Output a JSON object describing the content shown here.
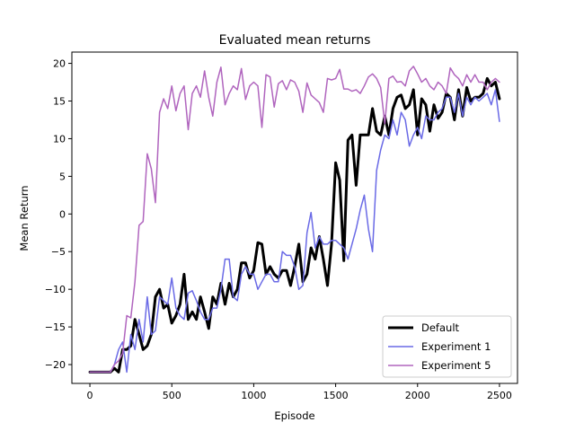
{
  "chart_data": {
    "type": "line",
    "title": "Evaluated mean returns",
    "xlabel": "Episode",
    "ylabel": "Mean Return",
    "xlim": [
      -110,
      2610
    ],
    "ylim": [
      -22.5,
      21.5
    ],
    "xticks": [
      0,
      500,
      1000,
      1500,
      2000,
      2500
    ],
    "yticks": [
      -20,
      -15,
      -10,
      -5,
      0,
      5,
      10,
      15,
      20
    ],
    "grid": false,
    "legend_position": "lower right",
    "series": [
      {
        "name": "Default",
        "color": "#000000",
        "width": 3,
        "points": [
          [
            0,
            -21
          ],
          [
            25,
            -21
          ],
          [
            50,
            -21
          ],
          [
            75,
            -21
          ],
          [
            100,
            -21
          ],
          [
            125,
            -21
          ],
          [
            150,
            -20.5
          ],
          [
            175,
            -21
          ],
          [
            200,
            -18
          ],
          [
            225,
            -18
          ],
          [
            250,
            -17.5
          ],
          [
            275,
            -14
          ],
          [
            300,
            -16
          ],
          [
            325,
            -18
          ],
          [
            350,
            -17.5
          ],
          [
            375,
            -16
          ],
          [
            400,
            -11
          ],
          [
            425,
            -10
          ],
          [
            450,
            -12.5
          ],
          [
            475,
            -12
          ],
          [
            500,
            -14.5
          ],
          [
            525,
            -13.5
          ],
          [
            550,
            -12
          ],
          [
            575,
            -8
          ],
          [
            600,
            -14
          ],
          [
            625,
            -13
          ],
          [
            650,
            -14
          ],
          [
            675,
            -11
          ],
          [
            700,
            -13
          ],
          [
            725,
            -15.2
          ],
          [
            750,
            -11
          ],
          [
            775,
            -12
          ],
          [
            800,
            -9.2
          ],
          [
            825,
            -12
          ],
          [
            850,
            -9.2
          ],
          [
            875,
            -11
          ],
          [
            900,
            -10
          ],
          [
            925,
            -6.5
          ],
          [
            950,
            -6.5
          ],
          [
            975,
            -8.5
          ],
          [
            1000,
            -7.5
          ],
          [
            1025,
            -3.8
          ],
          [
            1050,
            -4
          ],
          [
            1075,
            -8
          ],
          [
            1100,
            -7
          ],
          [
            1125,
            -8
          ],
          [
            1150,
            -8.5
          ],
          [
            1175,
            -7.5
          ],
          [
            1200,
            -7.5
          ],
          [
            1225,
            -9.5
          ],
          [
            1250,
            -7
          ],
          [
            1275,
            -4
          ],
          [
            1300,
            -9
          ],
          [
            1325,
            -8
          ],
          [
            1350,
            -4.5
          ],
          [
            1375,
            -6
          ],
          [
            1400,
            -3
          ],
          [
            1425,
            -6
          ],
          [
            1450,
            -9.5
          ],
          [
            1475,
            -4
          ],
          [
            1500,
            6.8
          ],
          [
            1525,
            4.5
          ],
          [
            1550,
            -6.2
          ],
          [
            1575,
            9.8
          ],
          [
            1600,
            10.5
          ],
          [
            1625,
            3.8
          ],
          [
            1650,
            10.5
          ],
          [
            1675,
            10.5
          ],
          [
            1700,
            10.5
          ],
          [
            1725,
            14
          ],
          [
            1750,
            11
          ],
          [
            1775,
            10.5
          ],
          [
            1800,
            13
          ],
          [
            1825,
            10.5
          ],
          [
            1850,
            14
          ],
          [
            1875,
            15.5
          ],
          [
            1900,
            15.8
          ],
          [
            1925,
            14
          ],
          [
            1950,
            14.5
          ],
          [
            1975,
            16.5
          ],
          [
            2000,
            10.5
          ],
          [
            2025,
            15.3
          ],
          [
            2050,
            14.5
          ],
          [
            2075,
            11
          ],
          [
            2100,
            14.5
          ],
          [
            2125,
            12.7
          ],
          [
            2150,
            13.5
          ],
          [
            2175,
            16
          ],
          [
            2200,
            15.5
          ],
          [
            2225,
            12.5
          ],
          [
            2250,
            16.5
          ],
          [
            2275,
            13
          ],
          [
            2300,
            16.8
          ],
          [
            2325,
            15
          ],
          [
            2350,
            15.5
          ],
          [
            2375,
            15.5
          ],
          [
            2400,
            16
          ],
          [
            2425,
            18
          ],
          [
            2450,
            17
          ],
          [
            2475,
            17.5
          ],
          [
            2500,
            15.3
          ]
        ]
      },
      {
        "name": "Experiment 1",
        "color": "#6a6ae6",
        "width": 1.5,
        "points": [
          [
            0,
            -21
          ],
          [
            25,
            -21
          ],
          [
            50,
            -21
          ],
          [
            75,
            -21
          ],
          [
            100,
            -21
          ],
          [
            125,
            -21
          ],
          [
            150,
            -20
          ],
          [
            175,
            -18
          ],
          [
            200,
            -17
          ],
          [
            225,
            -21
          ],
          [
            250,
            -16
          ],
          [
            275,
            -18
          ],
          [
            300,
            -14
          ],
          [
            325,
            -17
          ],
          [
            350,
            -11
          ],
          [
            375,
            -16
          ],
          [
            400,
            -15.5
          ],
          [
            425,
            -11
          ],
          [
            450,
            -11.5
          ],
          [
            475,
            -12
          ],
          [
            500,
            -8.5
          ],
          [
            525,
            -12.5
          ],
          [
            550,
            -13.5
          ],
          [
            575,
            -14
          ],
          [
            600,
            -10.5
          ],
          [
            625,
            -10.2
          ],
          [
            650,
            -11.5
          ],
          [
            675,
            -13
          ],
          [
            700,
            -14
          ],
          [
            725,
            -14
          ],
          [
            750,
            -12.5
          ],
          [
            775,
            -12.5
          ],
          [
            800,
            -10
          ],
          [
            825,
            -6
          ],
          [
            850,
            -6
          ],
          [
            875,
            -11
          ],
          [
            900,
            -11.5
          ],
          [
            925,
            -8
          ],
          [
            950,
            -7
          ],
          [
            975,
            -8
          ],
          [
            1000,
            -8
          ],
          [
            1025,
            -10
          ],
          [
            1050,
            -9
          ],
          [
            1075,
            -8
          ],
          [
            1100,
            -8
          ],
          [
            1125,
            -9
          ],
          [
            1150,
            -9
          ],
          [
            1175,
            -5
          ],
          [
            1200,
            -5.5
          ],
          [
            1225,
            -5.5
          ],
          [
            1250,
            -7
          ],
          [
            1275,
            -10
          ],
          [
            1300,
            -9.5
          ],
          [
            1325,
            -2.5
          ],
          [
            1350,
            0.2
          ],
          [
            1375,
            -4.5
          ],
          [
            1400,
            -3
          ],
          [
            1425,
            -4
          ],
          [
            1450,
            -4
          ],
          [
            1475,
            -3.5
          ],
          [
            1500,
            -3.5
          ],
          [
            1525,
            -4
          ],
          [
            1550,
            -4.5
          ],
          [
            1575,
            -6
          ],
          [
            1600,
            -4
          ],
          [
            1625,
            -2
          ],
          [
            1650,
            0.5
          ],
          [
            1675,
            2.5
          ],
          [
            1700,
            -2
          ],
          [
            1725,
            -5
          ],
          [
            1750,
            5.8
          ],
          [
            1775,
            8.5
          ],
          [
            1800,
            10.5
          ],
          [
            1825,
            10
          ],
          [
            1850,
            12.5
          ],
          [
            1875,
            10.5
          ],
          [
            1900,
            13.5
          ],
          [
            1925,
            12.5
          ],
          [
            1950,
            9
          ],
          [
            1975,
            10.5
          ],
          [
            2000,
            11.5
          ],
          [
            2025,
            10
          ],
          [
            2050,
            13
          ],
          [
            2075,
            12.5
          ],
          [
            2100,
            12.5
          ],
          [
            2125,
            13.5
          ],
          [
            2150,
            14
          ],
          [
            2175,
            15.5
          ],
          [
            2200,
            15.5
          ],
          [
            2225,
            13.5
          ],
          [
            2250,
            16
          ],
          [
            2275,
            13
          ],
          [
            2300,
            15.5
          ],
          [
            2325,
            14.5
          ],
          [
            2350,
            15.5
          ],
          [
            2375,
            15
          ],
          [
            2400,
            15.5
          ],
          [
            2425,
            16
          ],
          [
            2450,
            14.5
          ],
          [
            2475,
            16.5
          ],
          [
            2500,
            12.3
          ]
        ]
      },
      {
        "name": "Experiment 5",
        "color": "#b065be",
        "width": 1.5,
        "points": [
          [
            0,
            -21
          ],
          [
            25,
            -21
          ],
          [
            50,
            -21
          ],
          [
            75,
            -21
          ],
          [
            100,
            -21
          ],
          [
            125,
            -21
          ],
          [
            150,
            -20
          ],
          [
            175,
            -19.5
          ],
          [
            200,
            -18.5
          ],
          [
            225,
            -13.5
          ],
          [
            250,
            -13.8
          ],
          [
            275,
            -9
          ],
          [
            300,
            -1.5
          ],
          [
            325,
            -1
          ],
          [
            350,
            8
          ],
          [
            375,
            6
          ],
          [
            400,
            1.5
          ],
          [
            425,
            13.5
          ],
          [
            450,
            15.3
          ],
          [
            475,
            14
          ],
          [
            500,
            17
          ],
          [
            525,
            13.7
          ],
          [
            550,
            16
          ],
          [
            575,
            17
          ],
          [
            600,
            11.2
          ],
          [
            625,
            16
          ],
          [
            650,
            17
          ],
          [
            675,
            15.5
          ],
          [
            700,
            19
          ],
          [
            725,
            15.5
          ],
          [
            750,
            13
          ],
          [
            775,
            17.5
          ],
          [
            800,
            19.5
          ],
          [
            825,
            14.5
          ],
          [
            850,
            16
          ],
          [
            875,
            17
          ],
          [
            900,
            16.5
          ],
          [
            925,
            19.3
          ],
          [
            950,
            15.2
          ],
          [
            975,
            17
          ],
          [
            1000,
            17.5
          ],
          [
            1025,
            17
          ],
          [
            1050,
            11.5
          ],
          [
            1075,
            18.5
          ],
          [
            1100,
            18.2
          ],
          [
            1125,
            14.2
          ],
          [
            1150,
            17.3
          ],
          [
            1175,
            17.7
          ],
          [
            1200,
            16.5
          ],
          [
            1225,
            17.8
          ],
          [
            1250,
            17.5
          ],
          [
            1275,
            16.3
          ],
          [
            1300,
            13.5
          ],
          [
            1325,
            17.4
          ],
          [
            1350,
            15.8
          ],
          [
            1375,
            15.3
          ],
          [
            1400,
            14.8
          ],
          [
            1425,
            13.5
          ],
          [
            1450,
            18
          ],
          [
            1475,
            17.8
          ],
          [
            1500,
            18
          ],
          [
            1525,
            19.2
          ],
          [
            1550,
            16.6
          ],
          [
            1575,
            16.6
          ],
          [
            1600,
            16.3
          ],
          [
            1625,
            16.5
          ],
          [
            1650,
            16
          ],
          [
            1675,
            17
          ],
          [
            1700,
            18.2
          ],
          [
            1725,
            18.6
          ],
          [
            1750,
            18
          ],
          [
            1775,
            16.8
          ],
          [
            1800,
            12
          ],
          [
            1825,
            18
          ],
          [
            1850,
            18.3
          ],
          [
            1875,
            17.5
          ],
          [
            1900,
            17.6
          ],
          [
            1925,
            17
          ],
          [
            1950,
            19
          ],
          [
            1975,
            19.6
          ],
          [
            2000,
            18.6
          ],
          [
            2025,
            17.5
          ],
          [
            2050,
            18
          ],
          [
            2075,
            17
          ],
          [
            2100,
            16.5
          ],
          [
            2125,
            17.5
          ],
          [
            2150,
            17
          ],
          [
            2175,
            16
          ],
          [
            2200,
            19.4
          ],
          [
            2225,
            18.5
          ],
          [
            2250,
            18
          ],
          [
            2275,
            17
          ],
          [
            2300,
            18.5
          ],
          [
            2325,
            17.5
          ],
          [
            2350,
            18.5
          ],
          [
            2375,
            17.5
          ],
          [
            2400,
            17.5
          ],
          [
            2425,
            16.5
          ],
          [
            2450,
            17.5
          ],
          [
            2475,
            18
          ],
          [
            2500,
            17.5
          ]
        ]
      }
    ]
  }
}
